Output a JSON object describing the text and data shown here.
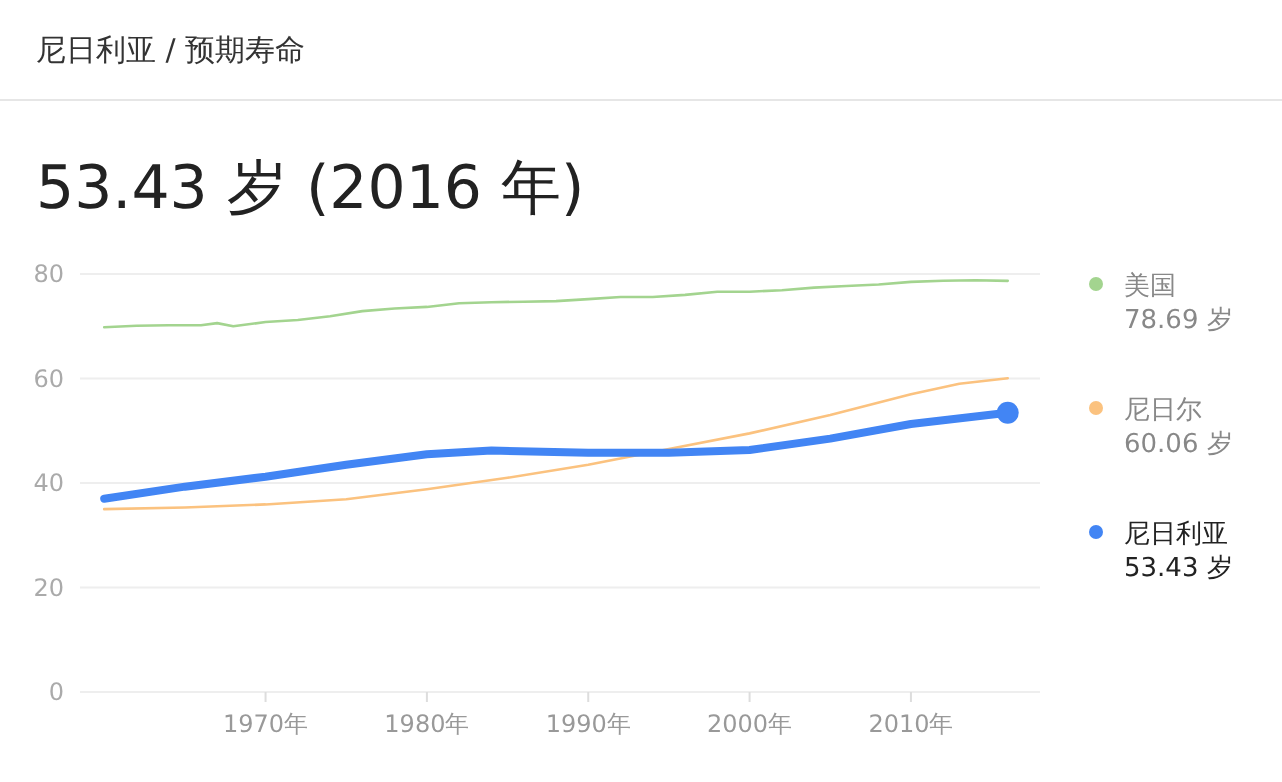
{
  "chart_data": {
    "type": "line",
    "title": "尼日利亚 / 预期寿命",
    "subtitle": "53.43 岁 (2016 年)",
    "xlim": [
      1958.5,
      2018
    ],
    "xticks": [
      {
        "value": 1970,
        "label": "1970年"
      },
      {
        "value": 1980,
        "label": "1980年"
      },
      {
        "value": 1990,
        "label": "1990年"
      },
      {
        "value": 2000,
        "label": "2000年"
      },
      {
        "value": 2010,
        "label": "2010年"
      }
    ],
    "ylim": [
      0,
      80
    ],
    "yticks": [
      0,
      20,
      40,
      60,
      80
    ],
    "grid": "y",
    "legend": "right",
    "annotations": [
      "78.69 岁",
      "60.06 岁",
      "53.43 岁"
    ],
    "series": [
      {
        "name": "美国",
        "color": "#a3d48f",
        "x": [
          1960,
          1962,
          1964,
          1966,
          1967,
          1968,
          1970,
          1972,
          1974,
          1976,
          1978,
          1980,
          1982,
          1984,
          1986,
          1988,
          1990,
          1992,
          1994,
          1996,
          1998,
          2000,
          2002,
          2004,
          2006,
          2008,
          2010,
          2012,
          2014,
          2016
        ],
        "values": [
          69.8,
          70.1,
          70.2,
          70.2,
          70.6,
          70.0,
          70.8,
          71.2,
          71.9,
          72.9,
          73.4,
          73.7,
          74.4,
          74.6,
          74.7,
          74.8,
          75.2,
          75.6,
          75.6,
          76.0,
          76.6,
          76.6,
          76.9,
          77.4,
          77.7,
          78.0,
          78.5,
          78.7,
          78.8,
          78.69
        ]
      },
      {
        "name": "尼日尔",
        "color": "#fbc27f",
        "x": [
          1960,
          1965,
          1970,
          1975,
          1980,
          1985,
          1990,
          1995,
          2000,
          2005,
          2010,
          2013,
          2016
        ],
        "values": [
          35.0,
          35.3,
          35.9,
          36.9,
          38.8,
          41.0,
          43.5,
          46.5,
          49.5,
          53.0,
          57.0,
          59.0,
          60.06
        ]
      },
      {
        "name": "尼日利亚",
        "color": "#4285f4",
        "x": [
          1960,
          1965,
          1970,
          1975,
          1980,
          1984,
          1990,
          1995,
          2000,
          2005,
          2010,
          2016
        ],
        "values": [
          37.0,
          39.3,
          41.2,
          43.5,
          45.5,
          46.2,
          45.8,
          45.8,
          46.3,
          48.5,
          51.3,
          53.43
        ]
      },
      {
        "type": "scatter",
        "color": "#4285f4",
        "x": [
          2016
        ],
        "values": [
          53.43
        ]
      }
    ]
  }
}
